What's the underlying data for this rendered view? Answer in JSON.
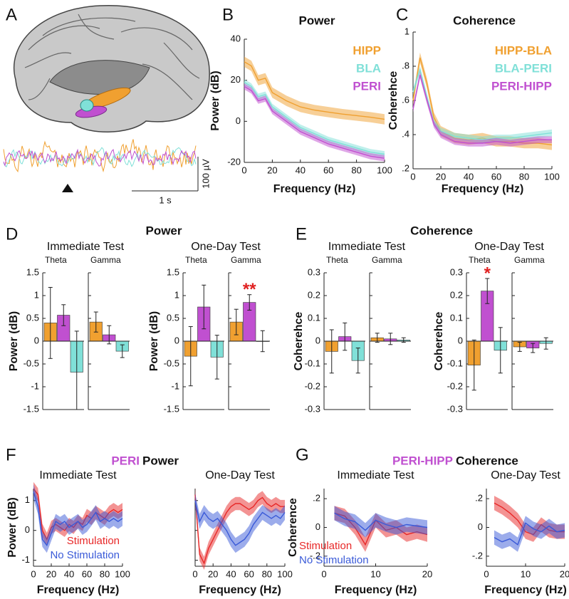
{
  "chart_data": [
    {
      "panel": "A",
      "type": "illustration",
      "scale_labels": [
        "100 µV",
        "1 s"
      ]
    },
    {
      "panel": "B",
      "type": "line",
      "title": "Power",
      "xlabel": "Frequency (Hz)",
      "ylabel": "Power (dB)",
      "x": [
        0,
        5,
        10,
        15,
        20,
        30,
        40,
        50,
        60,
        70,
        80,
        90,
        100
      ],
      "xlim": [
        0,
        100
      ],
      "xticks": [
        0,
        20,
        40,
        60,
        80,
        100
      ],
      "ylim": [
        -20,
        40
      ],
      "yticks": [
        -20,
        0,
        20,
        40
      ],
      "series": [
        {
          "name": "HIPP",
          "color": "#f0a030",
          "error": 2.5,
          "values": [
            29,
            27,
            20,
            21,
            14,
            10,
            7,
            5.5,
            4.5,
            3.5,
            2.8,
            2,
            1
          ]
        },
        {
          "name": "BLA",
          "color": "#80e0d8",
          "error": 1.5,
          "values": [
            19,
            17,
            12,
            13,
            7,
            2,
            -3,
            -6,
            -9,
            -11,
            -13,
            -15,
            -16
          ]
        },
        {
          "name": "PERI",
          "color": "#c050d0",
          "error": 1.5,
          "values": [
            17,
            15,
            10,
            11,
            5,
            0,
            -5,
            -8,
            -11,
            -13,
            -15,
            -17,
            -18
          ]
        }
      ]
    },
    {
      "panel": "C",
      "type": "line",
      "title": "Coherence",
      "xlabel": "Frequency (Hz)",
      "ylabel": "Coherehce",
      "x": [
        0,
        5,
        10,
        15,
        20,
        30,
        40,
        50,
        60,
        70,
        80,
        90,
        100
      ],
      "xlim": [
        0,
        100
      ],
      "xticks": [
        0,
        20,
        40,
        60,
        80,
        100
      ],
      "ylim": [
        0.2,
        1
      ],
      "yticks": [
        {
          "value": 0.2,
          "label": ".2"
        },
        {
          "value": 0.4,
          "label": ".4"
        },
        {
          "value": 0.6,
          "label": ".6"
        },
        {
          "value": 0.8,
          "label": ".8"
        },
        1
      ],
      "series": [
        {
          "name": "HIPP-BLA",
          "color": "#f0a030",
          "error": 0.03,
          "values": [
            0.6,
            0.85,
            0.7,
            0.5,
            0.42,
            0.38,
            0.37,
            0.38,
            0.36,
            0.36,
            0.35,
            0.35,
            0.34
          ]
        },
        {
          "name": "BLA-PERI",
          "color": "#80e0d8",
          "error": 0.02,
          "values": [
            0.65,
            0.78,
            0.62,
            0.47,
            0.42,
            0.39,
            0.38,
            0.37,
            0.38,
            0.38,
            0.39,
            0.4,
            0.41
          ]
        },
        {
          "name": "PERI-HIPP",
          "color": "#c050d0",
          "error": 0.02,
          "values": [
            0.55,
            0.75,
            0.6,
            0.46,
            0.4,
            0.36,
            0.35,
            0.35,
            0.36,
            0.35,
            0.36,
            0.37,
            0.37
          ]
        }
      ]
    },
    {
      "panel": "D",
      "type": "bar",
      "title": "Power",
      "ylabel": "Power (dB)",
      "ylim": [
        -1.5,
        1.5
      ],
      "yticks": [
        -1.5,
        -1,
        -0.5,
        0,
        0.5,
        1,
        1.5
      ],
      "colors": [
        "#f0a030",
        "#c050d0",
        "#80e0d8"
      ],
      "tests": [
        {
          "title": "Immediate Test",
          "groups": [
            {
              "name": "Theta",
              "values": [
                0.4,
                0.57,
                -0.68
              ],
              "errors": [
                0.78,
                0.23,
                0.9
              ]
            },
            {
              "name": "Gamma",
              "values": [
                0.42,
                0.14,
                -0.22
              ],
              "errors": [
                0.22,
                0.2,
                0.14
              ]
            }
          ]
        },
        {
          "title": "One-Day Test",
          "groups": [
            {
              "name": "Theta",
              "values": [
                -0.33,
                0.75,
                -0.35
              ],
              "errors": [
                0.65,
                0.48,
                0.48
              ]
            },
            {
              "name": "Gamma",
              "values": [
                0.42,
                0.85,
                0.0
              ],
              "errors": [
                0.28,
                0.17,
                0.23
              ],
              "annotation": "**"
            }
          ]
        }
      ]
    },
    {
      "panel": "E",
      "type": "bar",
      "title": "Coherence",
      "ylabel": "Coherehce",
      "ylim": [
        -0.3,
        0.3
      ],
      "yticks": [
        -0.3,
        -0.2,
        -0.1,
        0,
        0.1,
        0.2,
        0.3
      ],
      "colors": [
        "#f0a030",
        "#c050d0",
        "#80e0d8"
      ],
      "tests": [
        {
          "title": "Immediate Test",
          "groups": [
            {
              "name": "Theta",
              "values": [
                -0.045,
                0.02,
                -0.085
              ],
              "errors": [
                0.095,
                0.06,
                0.055
              ]
            },
            {
              "name": "Gamma",
              "values": [
                0.015,
                0.01,
                0.005
              ],
              "errors": [
                0.02,
                0.025,
                0.01
              ]
            }
          ]
        },
        {
          "title": "One-Day Test",
          "groups": [
            {
              "name": "Theta",
              "values": [
                -0.105,
                0.22,
                -0.04
              ],
              "errors": [
                0.11,
                0.055,
                0.1
              ],
              "annotation": "*"
            },
            {
              "name": "Gamma",
              "values": [
                -0.025,
                -0.03,
                -0.01
              ],
              "errors": [
                0.02,
                0.02,
                0.025
              ]
            }
          ]
        }
      ]
    },
    {
      "panel": "F",
      "type": "line",
      "title_prefix": "PERI",
      "title_prefix_color": "#c050d0",
      "title": "Power",
      "xlabel": "Frequency (Hz)",
      "ylabel": "Power (dB)",
      "x": [
        0,
        5,
        10,
        15,
        20,
        25,
        30,
        35,
        40,
        45,
        50,
        55,
        60,
        65,
        70,
        75,
        80,
        85,
        90,
        95,
        100
      ],
      "xlim": [
        0,
        100
      ],
      "xticks": [
        0,
        20,
        40,
        60,
        80,
        100
      ],
      "ylim": [
        -1.2,
        1.4
      ],
      "yticks": [
        -1,
        0,
        1
      ],
      "series": [
        {
          "name": "Stimulation",
          "color": "#e82828",
          "error": 0.22
        },
        {
          "name": "No Stimulation",
          "color": "#3a5ad8",
          "error": 0.25
        }
      ],
      "subplots": [
        {
          "title": "Immediate Test",
          "values": [
            [
              1.4,
              1.2,
              0.0,
              -0.3,
              0.1,
              0.2,
              0.1,
              0.0,
              0.2,
              0.1,
              0.3,
              0.2,
              0.5,
              0.4,
              0.6,
              0.5,
              0.4,
              0.6,
              0.7,
              0.6,
              0.7
            ],
            [
              1.3,
              0.8,
              -0.3,
              -0.5,
              -0.1,
              0.3,
              0.2,
              0.3,
              0.1,
              0.2,
              0.3,
              0.1,
              0.2,
              0.4,
              0.6,
              0.3,
              0.4,
              0.3,
              0.4,
              0.3,
              0.4
            ]
          ]
        },
        {
          "title": "One-Day Test",
          "values": [
            [
              1.2,
              -0.8,
              -1.1,
              -0.6,
              -0.3,
              0.0,
              0.3,
              0.6,
              0.8,
              0.9,
              0.9,
              0.8,
              0.7,
              0.8,
              1.0,
              1.1,
              0.9,
              0.8,
              0.9,
              0.8,
              0.8
            ],
            [
              1.0,
              0.3,
              0.6,
              0.4,
              0.3,
              0.4,
              0.2,
              0.0,
              -0.3,
              -0.5,
              -0.4,
              -0.3,
              -0.1,
              0.2,
              0.4,
              0.6,
              0.5,
              0.4,
              0.5,
              0.4,
              0.6
            ]
          ]
        }
      ]
    },
    {
      "panel": "G",
      "type": "line",
      "title_prefix": "PERI-HIPP",
      "title_prefix_color": "#c050d0",
      "title": "Coherence",
      "xlabel": "Frequency (Hz)",
      "ylabel": "Coherence",
      "x": [
        2,
        4,
        6,
        8,
        10,
        12,
        14,
        16,
        18,
        20
      ],
      "xlim": [
        0,
        20
      ],
      "xticks": [
        0,
        10,
        20
      ],
      "ylim": [
        -0.27,
        0.27
      ],
      "yticks": [
        {
          "value": -0.2,
          "label": "-.2"
        },
        0,
        {
          "value": 0.2,
          "label": ".2"
        }
      ],
      "series": [
        {
          "name": "Stimulation",
          "color": "#e82828",
          "error": 0.05
        },
        {
          "name": "No Stimulation",
          "color": "#3a5ad8",
          "error": 0.05
        }
      ],
      "subplots": [
        {
          "title": "Immediate Test",
          "values": [
            [
              0.1,
              0.08,
              0.0,
              -0.12,
              0.05,
              -0.02,
              0.0,
              -0.05,
              -0.03,
              -0.05
            ],
            [
              0.1,
              0.06,
              0.04,
              -0.02,
              0.05,
              0.02,
              0.0,
              0.02,
              0.01,
              0.0
            ]
          ]
        },
        {
          "title": "One-Day Test",
          "values": [
            [
              0.17,
              0.14,
              0.1,
              0.05,
              -0.03,
              -0.05,
              0.02,
              -0.02,
              -0.03,
              -0.03
            ],
            [
              -0.07,
              -0.1,
              -0.08,
              -0.12,
              0.03,
              -0.01,
              -0.03,
              0.01,
              -0.03,
              -0.02
            ]
          ]
        }
      ]
    }
  ]
}
